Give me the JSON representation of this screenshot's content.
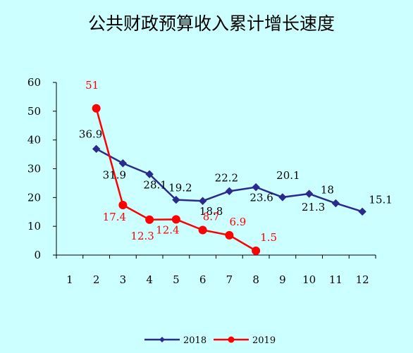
{
  "chart_data": {
    "type": "line",
    "title": "公共财政预算收入累计增长速度",
    "xlabel": "",
    "ylabel": "",
    "categories": [
      "1",
      "2",
      "3",
      "4",
      "5",
      "6",
      "7",
      "8",
      "9",
      "10",
      "11",
      "12"
    ],
    "ylim": [
      0,
      60
    ],
    "yticks": [
      "0",
      "10",
      "20",
      "30",
      "40",
      "50",
      "60"
    ],
    "grid": false,
    "legend": "bottom-center",
    "series": [
      {
        "name": "2018",
        "color": "#2b2b8c",
        "marker": "diamond",
        "values": [
          null,
          36.9,
          31.9,
          28.1,
          19.2,
          18.8,
          22.2,
          23.6,
          20.1,
          21.3,
          18,
          15.1
        ],
        "labels": [
          "",
          "36.9",
          "31.9",
          "28.1",
          "19.2",
          "18.8",
          "22.2",
          "23.6",
          "20.1",
          "21.3",
          "18",
          "15.1"
        ]
      },
      {
        "name": "2019",
        "color": "#ff0000",
        "marker": "circle",
        "values": [
          null,
          51,
          17.4,
          12.3,
          12.4,
          8.7,
          6.9,
          1.5,
          null,
          null,
          null,
          null
        ],
        "labels": [
          "",
          "51",
          "17.4",
          "12.3",
          "12.4",
          "8.7",
          "6.9",
          "1.5",
          "",
          "",
          "",
          ""
        ]
      }
    ]
  }
}
